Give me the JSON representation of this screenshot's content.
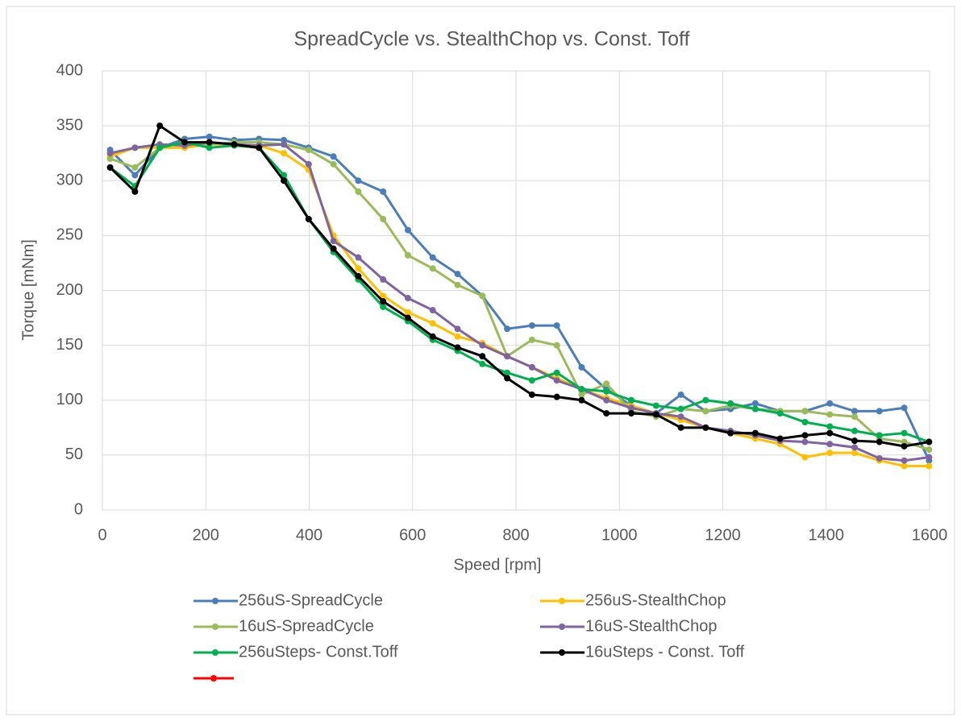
{
  "chart_data": {
    "type": "line",
    "title": "SpreadCycle vs. StealthChop vs. Const. Toff",
    "x_label": "Speed [rpm]",
    "y_label": "Torque [mNm]",
    "x": [
      15,
      63,
      111,
      159,
      207,
      255,
      303,
      351,
      399,
      447,
      495,
      543,
      591,
      639,
      687,
      735,
      783,
      831,
      879,
      927,
      975,
      1023,
      1071,
      1119,
      1167,
      1215,
      1263,
      1311,
      1359,
      1407,
      1455,
      1503,
      1551,
      1599
    ],
    "series": [
      {
        "name": "256uS-SpreadCycle",
        "color": "#4a7ebb",
        "values": [
          328,
          305,
          330,
          338,
          340,
          337,
          338,
          337,
          330,
          322,
          300,
          290,
          255,
          230,
          215,
          195,
          165,
          168,
          168,
          130,
          110,
          95,
          88,
          105,
          90,
          92,
          97,
          90,
          90,
          97,
          90,
          90,
          93,
          45
        ]
      },
      {
        "name": "256uS-StealthChop",
        "color": "#ffc000",
        "values": [
          322,
          330,
          330,
          330,
          333,
          333,
          332,
          325,
          310,
          250,
          220,
          195,
          180,
          170,
          158,
          152,
          140,
          130,
          120,
          110,
          102,
          95,
          88,
          82,
          75,
          70,
          65,
          60,
          48,
          52,
          52,
          45,
          40,
          40
        ]
      },
      {
        "name": "16uS-SpreadCycle",
        "color": "#9bbb59",
        "values": [
          320,
          312,
          330,
          335,
          333,
          335,
          335,
          333,
          328,
          315,
          290,
          265,
          232,
          220,
          205,
          195,
          140,
          155,
          150,
          105,
          115,
          90,
          85,
          92,
          90,
          95,
          92,
          90,
          90,
          87,
          85,
          65,
          62,
          55
        ]
      },
      {
        "name": "16uS-StealthChop",
        "color": "#8064a2",
        "values": [
          325,
          330,
          333,
          332,
          335,
          333,
          332,
          333,
          315,
          245,
          230,
          210,
          193,
          182,
          165,
          150,
          140,
          130,
          118,
          110,
          100,
          93,
          88,
          85,
          75,
          72,
          68,
          63,
          62,
          60,
          57,
          47,
          45,
          48
        ]
      },
      {
        "name": "256uSteps- Const.Toff",
        "color": "#00b050",
        "values": [
          312,
          295,
          330,
          335,
          330,
          332,
          330,
          305,
          265,
          235,
          210,
          185,
          172,
          155,
          145,
          133,
          125,
          118,
          125,
          110,
          108,
          100,
          95,
          92,
          100,
          97,
          92,
          88,
          80,
          76,
          72,
          68,
          70,
          62
        ]
      },
      {
        "name": "16uSteps - Const. Toff",
        "color": "#000000",
        "values": [
          312,
          290,
          350,
          335,
          335,
          333,
          330,
          300,
          265,
          238,
          213,
          190,
          175,
          158,
          148,
          140,
          120,
          105,
          103,
          100,
          88,
          88,
          87,
          75,
          75,
          70,
          70,
          65,
          68,
          70,
          63,
          62,
          58,
          62
        ]
      }
    ],
    "xlim": [
      0,
      1600
    ],
    "xticks": [
      0,
      200,
      400,
      600,
      800,
      1000,
      1200,
      1400,
      1600
    ],
    "ylim": [
      0,
      400
    ],
    "yticks": [
      0,
      50,
      100,
      150,
      200,
      250,
      300,
      350,
      400
    ],
    "grid": true
  }
}
